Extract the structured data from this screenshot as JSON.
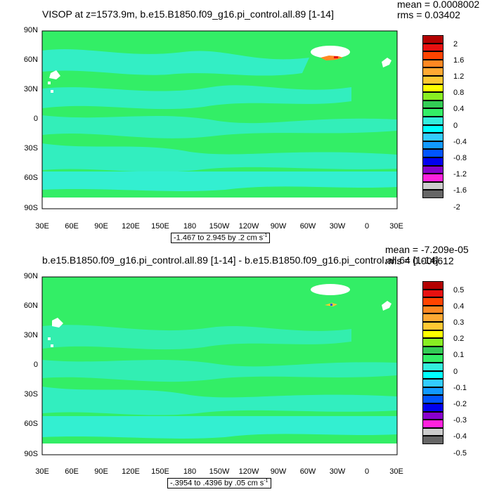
{
  "panels": [
    {
      "title": "VISOP at z=1573.9m, b.e15.B1850.f09_g16.pi_control.all.89 [1-14]",
      "mean_text": "mean = 0.0008002",
      "rms_text": "rms = 0.03402",
      "note_text": "-1.467 to 2.945 by .2 cm s",
      "note_sup": "-1",
      "colorbar_labels": [
        "2",
        "1.6",
        "1.2",
        "0.8",
        "0.4",
        "0",
        "-0.4",
        "-0.8",
        "-1.2",
        "-1.6",
        "-2"
      ]
    },
    {
      "title": "b.e15.B1850.f09_g16.pi_control.all.89 [1-14] - b.e15.B1850.f09_g16.pi_control.all.64 [1-14]",
      "mean_text": "mean = -7.209e-05",
      "rms_text": "rms = 0.006612",
      "note_text": "-.3954 to .4396 by .05 cm s",
      "note_sup": "-1",
      "colorbar_labels": [
        "0.5",
        "0.4",
        "0.3",
        "0.2",
        "0.1",
        "0",
        "-0.1",
        "-0.2",
        "-0.3",
        "-0.4",
        "-0.5"
      ]
    }
  ],
  "lat_labels": [
    "90N",
    "60N",
    "30N",
    "0",
    "30S",
    "60S",
    "90S"
  ],
  "lon_labels": [
    "30E",
    "60E",
    "90E",
    "120E",
    "150E",
    "180",
    "150W",
    "120W",
    "90W",
    "60W",
    "30W",
    "0",
    "30E"
  ],
  "colors": {
    "field_main": "#33ee66",
    "field_near_zero": "#33eedd",
    "land_missing": "#ffffff",
    "colorbar": [
      "#b40000",
      "#e81010",
      "#ff4400",
      "#ff8822",
      "#ffa933",
      "#ffc833",
      "#ffff00",
      "#88ee22",
      "#33cc55",
      "#33ee66",
      "#33eedd",
      "#00ffff",
      "#33ccff",
      "#1199ff",
      "#0055ff",
      "#0000ee",
      "#8800cc",
      "#ff22dd",
      "#cccccc",
      "#666666"
    ]
  }
}
